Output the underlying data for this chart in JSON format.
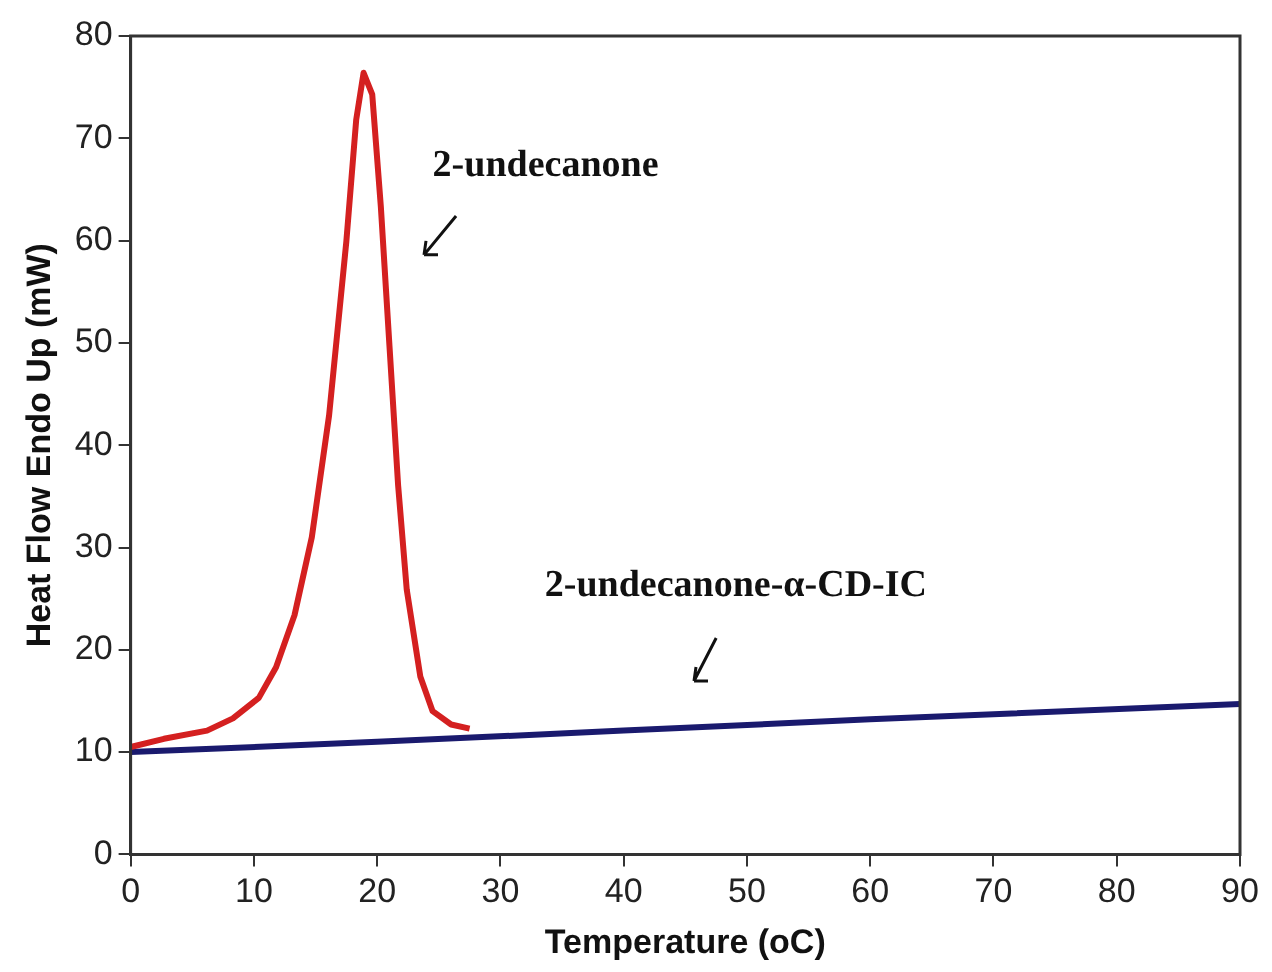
{
  "chart_data": {
    "type": "line",
    "xlabel": "Temperature (oC)",
    "ylabel": "Heat Flow Endo Up (mW)",
    "xlim": [
      0,
      90
    ],
    "xticks": [
      0,
      10,
      20,
      30,
      40,
      50,
      60,
      70,
      80,
      90
    ],
    "ylim": [
      0,
      80
    ],
    "yticks": [
      0,
      10,
      20,
      30,
      40,
      50,
      60,
      70,
      80
    ],
    "grid": false,
    "legend": false,
    "marker": "none",
    "line_style": "solid",
    "series": [
      {
        "name": "2-undecanone",
        "color": "#d42020",
        "x": [
          0,
          2.7,
          6.2,
          8.3,
          10.4,
          11.8,
          13.3,
          14.7,
          16.1,
          17.5,
          18.3,
          18.9,
          19.6,
          20.3,
          21.0,
          21.7,
          22.4,
          23.5,
          24.5,
          26.0,
          27.5
        ],
        "values": [
          10.5,
          11.3,
          12.1,
          13.3,
          15.3,
          18.3,
          23.4,
          31,
          42.9,
          59.9,
          71.8,
          76.4,
          74.3,
          63.3,
          49.7,
          36.1,
          25.9,
          17.4,
          14.0,
          12.7,
          12.3
        ]
      },
      {
        "name": "2-undecanone-α-CD-IC",
        "color": "#1a1a6e",
        "x": [
          0,
          20,
          40,
          60,
          90
        ],
        "values": [
          10,
          11,
          12.1,
          13.2,
          14.7
        ]
      }
    ]
  }
}
